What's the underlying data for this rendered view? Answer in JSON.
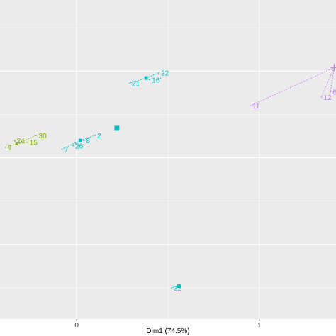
{
  "chart_data": {
    "type": "scatter",
    "title": "",
    "xlabel": "Dim1 (74.5%)",
    "ylabel": "",
    "x_ticks": [
      "0",
      "1"
    ],
    "xlim": [
      -0.42,
      1.42
    ],
    "ylim": [
      -0.93,
      0.91
    ],
    "grid": true,
    "colors": {
      "panel": "#ebebeb",
      "grid": "#ffffff",
      "green": "#7cae00",
      "cyan": "#00bfc4",
      "pink": "#c77cff"
    },
    "groups": [
      {
        "color": "#7cae00",
        "marker": "triangle",
        "centroid": [
          -0.33,
          0.08
        ],
        "points": [
          {
            "label": "9",
            "x": -0.39,
            "y": 0.06
          },
          {
            "label": "24",
            "x": -0.34,
            "y": 0.1
          },
          {
            "label": "30",
            "x": -0.22,
            "y": 0.13
          },
          {
            "label": "15",
            "x": -0.27,
            "y": 0.09
          }
        ]
      },
      {
        "color": "#00bfc4",
        "marker": "square",
        "centroid": [
          0.02,
          0.1
        ],
        "points": [
          {
            "label": "7",
            "x": -0.08,
            "y": 0.05
          },
          {
            "label": "26",
            "x": -0.02,
            "y": 0.07
          },
          {
            "label": "8",
            "x": 0.04,
            "y": 0.1
          },
          {
            "label": "2",
            "x": 0.1,
            "y": 0.13
          }
        ]
      },
      {
        "color": "#00bfc4",
        "marker": "square",
        "centroid": [
          0.38,
          0.46
        ],
        "points": [
          {
            "label": "21",
            "x": 0.29,
            "y": 0.43
          },
          {
            "label": "16'",
            "x": 0.4,
            "y": 0.45
          },
          {
            "label": "22",
            "x": 0.45,
            "y": 0.49
          }
        ]
      },
      {
        "color": "#00bfc4",
        "marker": "square",
        "centroid": [
          0.22,
          0.17
        ],
        "points": []
      },
      {
        "color": "#00bfc4",
        "marker": "square",
        "centroid": [
          0.56,
          -0.74
        ],
        "points": [
          {
            "label": "32",
            "x": 0.52,
            "y": -0.75
          }
        ]
      },
      {
        "color": "#c77cff",
        "marker": "plus",
        "centroid": [
          1.41,
          0.52
        ],
        "points": [
          {
            "label": "11",
            "x": 0.95,
            "y": 0.3
          },
          {
            "label": "12",
            "x": 1.34,
            "y": 0.35
          },
          {
            "label": "6",
            "x": 1.39,
            "y": 0.38
          }
        ]
      }
    ]
  }
}
